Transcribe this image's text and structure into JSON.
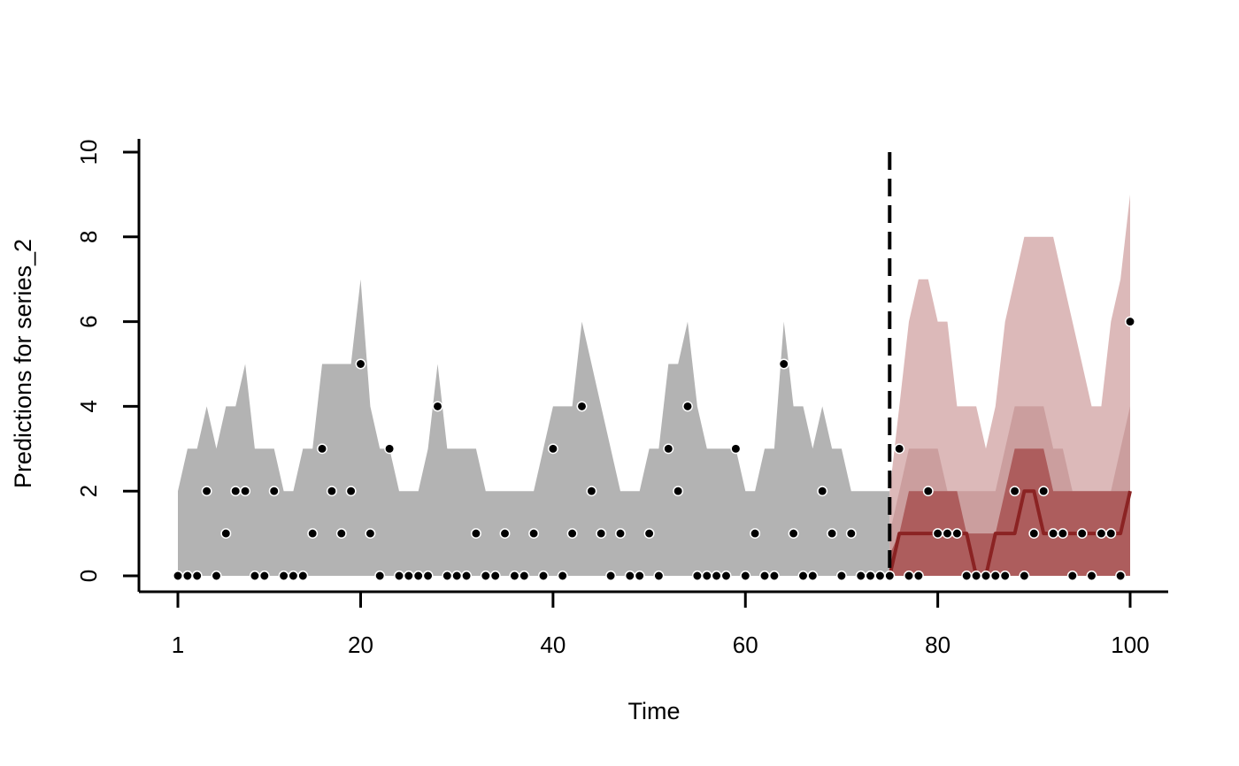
{
  "chart_data": {
    "type": "area",
    "xlabel": "Time",
    "ylabel": "Predictions for series_2",
    "xlim": [
      1,
      100
    ],
    "ylim": [
      0,
      10
    ],
    "x_ticks": [
      1,
      20,
      40,
      60,
      80,
      100
    ],
    "y_ticks": [
      0,
      2,
      4,
      6,
      8,
      10
    ],
    "forecast_start": 75,
    "colors": {
      "hindcast_band": "#b3b3b3",
      "forecast_band_outer": "#dcb9b9",
      "forecast_band_mid": "#c69595",
      "forecast_band_inner": "#a34747",
      "forecast_median": "#8b2323",
      "observed_point": "#000000",
      "vline": "#000000"
    },
    "hindcast_upper": {
      "x": [
        1,
        2,
        3,
        4,
        5,
        6,
        7,
        8,
        9,
        10,
        11,
        12,
        13,
        14,
        15,
        16,
        17,
        18,
        19,
        20,
        21,
        22,
        23,
        24,
        25,
        26,
        27,
        28,
        29,
        30,
        31,
        32,
        33,
        34,
        35,
        36,
        37,
        38,
        39,
        40,
        41,
        42,
        43,
        44,
        45,
        46,
        47,
        48,
        49,
        50,
        51,
        52,
        53,
        54,
        55,
        56,
        57,
        58,
        59,
        60,
        61,
        62,
        63,
        64,
        65,
        66,
        67,
        68,
        69,
        70,
        71,
        72,
        73,
        74,
        75
      ],
      "y": [
        2,
        3,
        3,
        4,
        3,
        4,
        4,
        5,
        3,
        3,
        3,
        2,
        2,
        3,
        3,
        5,
        5,
        5,
        5,
        7,
        4,
        3,
        3,
        2,
        2,
        2,
        3,
        5,
        3,
        3,
        3,
        3,
        2,
        2,
        2,
        2,
        2,
        2,
        3,
        4,
        4,
        4,
        6,
        5,
        4,
        3,
        2,
        2,
        2,
        3,
        3,
        5,
        5,
        6,
        4,
        3,
        3,
        3,
        3,
        2,
        2,
        3,
        3,
        6,
        4,
        4,
        3,
        4,
        3,
        3,
        2,
        2,
        2,
        2,
        2
      ]
    },
    "forecast_x": [
      75,
      76,
      77,
      78,
      79,
      80,
      81,
      82,
      83,
      84,
      85,
      86,
      87,
      88,
      89,
      90,
      91,
      92,
      93,
      94,
      95,
      96,
      97,
      98,
      99,
      100
    ],
    "forecast_bands": [
      {
        "level": "outer",
        "upper": [
          2,
          4,
          6,
          7,
          7,
          6,
          6,
          4,
          4,
          4,
          3,
          4,
          6,
          7,
          8,
          8,
          8,
          8,
          7,
          6,
          5,
          4,
          4,
          6,
          7,
          9
        ],
        "lower": [
          0,
          0,
          0,
          0,
          0,
          0,
          0,
          0,
          0,
          0,
          0,
          0,
          0,
          0,
          0,
          0,
          0,
          0,
          0,
          0,
          0,
          0,
          0,
          0,
          0,
          0
        ]
      },
      {
        "level": "mid",
        "upper": [
          1,
          2,
          3,
          3,
          3,
          3,
          2,
          2,
          2,
          2,
          2,
          2,
          3,
          4,
          4,
          4,
          4,
          3,
          3,
          2,
          2,
          2,
          2,
          2,
          3,
          4
        ],
        "lower": [
          0,
          0,
          0,
          0,
          0,
          0,
          0,
          0,
          0,
          0,
          0,
          0,
          0,
          0,
          0,
          0,
          0,
          0,
          0,
          0,
          0,
          0,
          0,
          0,
          0,
          0
        ]
      },
      {
        "level": "inner",
        "upper": [
          0.5,
          1,
          2,
          2,
          2,
          2,
          2,
          2,
          1,
          1,
          1,
          1,
          2,
          3,
          3,
          3,
          3,
          2,
          2,
          2,
          2,
          2,
          2,
          2,
          2,
          2
        ],
        "lower": [
          0,
          0,
          0,
          0,
          0,
          0,
          0,
          0,
          0,
          0,
          0,
          0,
          0,
          0,
          0,
          0,
          0,
          0,
          0,
          0,
          0,
          0,
          0,
          0,
          0,
          0
        ]
      }
    ],
    "forecast_median": [
      0,
      1,
      1,
      1,
      1,
      1,
      1,
      1,
      1,
      0,
      0,
      1,
      1,
      1,
      2,
      2,
      1,
      1,
      1,
      1,
      1,
      1,
      1,
      1,
      1,
      2
    ],
    "observed": {
      "x": [
        1,
        2,
        3,
        4,
        5,
        6,
        7,
        8,
        9,
        10,
        11,
        12,
        13,
        14,
        15,
        16,
        17,
        18,
        19,
        20,
        21,
        22,
        23,
        24,
        25,
        26,
        27,
        28,
        29,
        30,
        31,
        32,
        33,
        34,
        35,
        36,
        37,
        38,
        39,
        40,
        41,
        42,
        43,
        44,
        45,
        46,
        47,
        48,
        49,
        50,
        51,
        52,
        53,
        54,
        55,
        56,
        57,
        58,
        59,
        60,
        61,
        62,
        63,
        64,
        65,
        66,
        67,
        68,
        69,
        70,
        71,
        72,
        73,
        74,
        75,
        76,
        77,
        78,
        79,
        80,
        81,
        82,
        83,
        84,
        85,
        86,
        87,
        88,
        89,
        90,
        91,
        92,
        93,
        94,
        95,
        96,
        97,
        98,
        99,
        100
      ],
      "y": [
        0,
        0,
        0,
        2,
        0,
        1,
        2,
        2,
        0,
        0,
        2,
        0,
        0,
        0,
        1,
        3,
        2,
        1,
        2,
        5,
        1,
        0,
        3,
        0,
        0,
        0,
        0,
        4,
        0,
        0,
        0,
        1,
        0,
        0,
        1,
        0,
        0,
        1,
        0,
        3,
        0,
        1,
        4,
        2,
        1,
        0,
        1,
        0,
        0,
        1,
        0,
        3,
        2,
        4,
        0,
        0,
        0,
        0,
        3,
        0,
        1,
        0,
        0,
        5,
        1,
        0,
        0,
        2,
        1,
        0,
        1,
        0,
        0,
        0,
        0,
        3,
        0,
        0,
        2,
        1,
        1,
        1,
        0,
        0,
        0,
        0,
        0,
        2,
        0,
        1,
        2,
        1,
        1,
        0,
        1,
        0,
        1,
        1,
        0,
        6
      ]
    }
  }
}
